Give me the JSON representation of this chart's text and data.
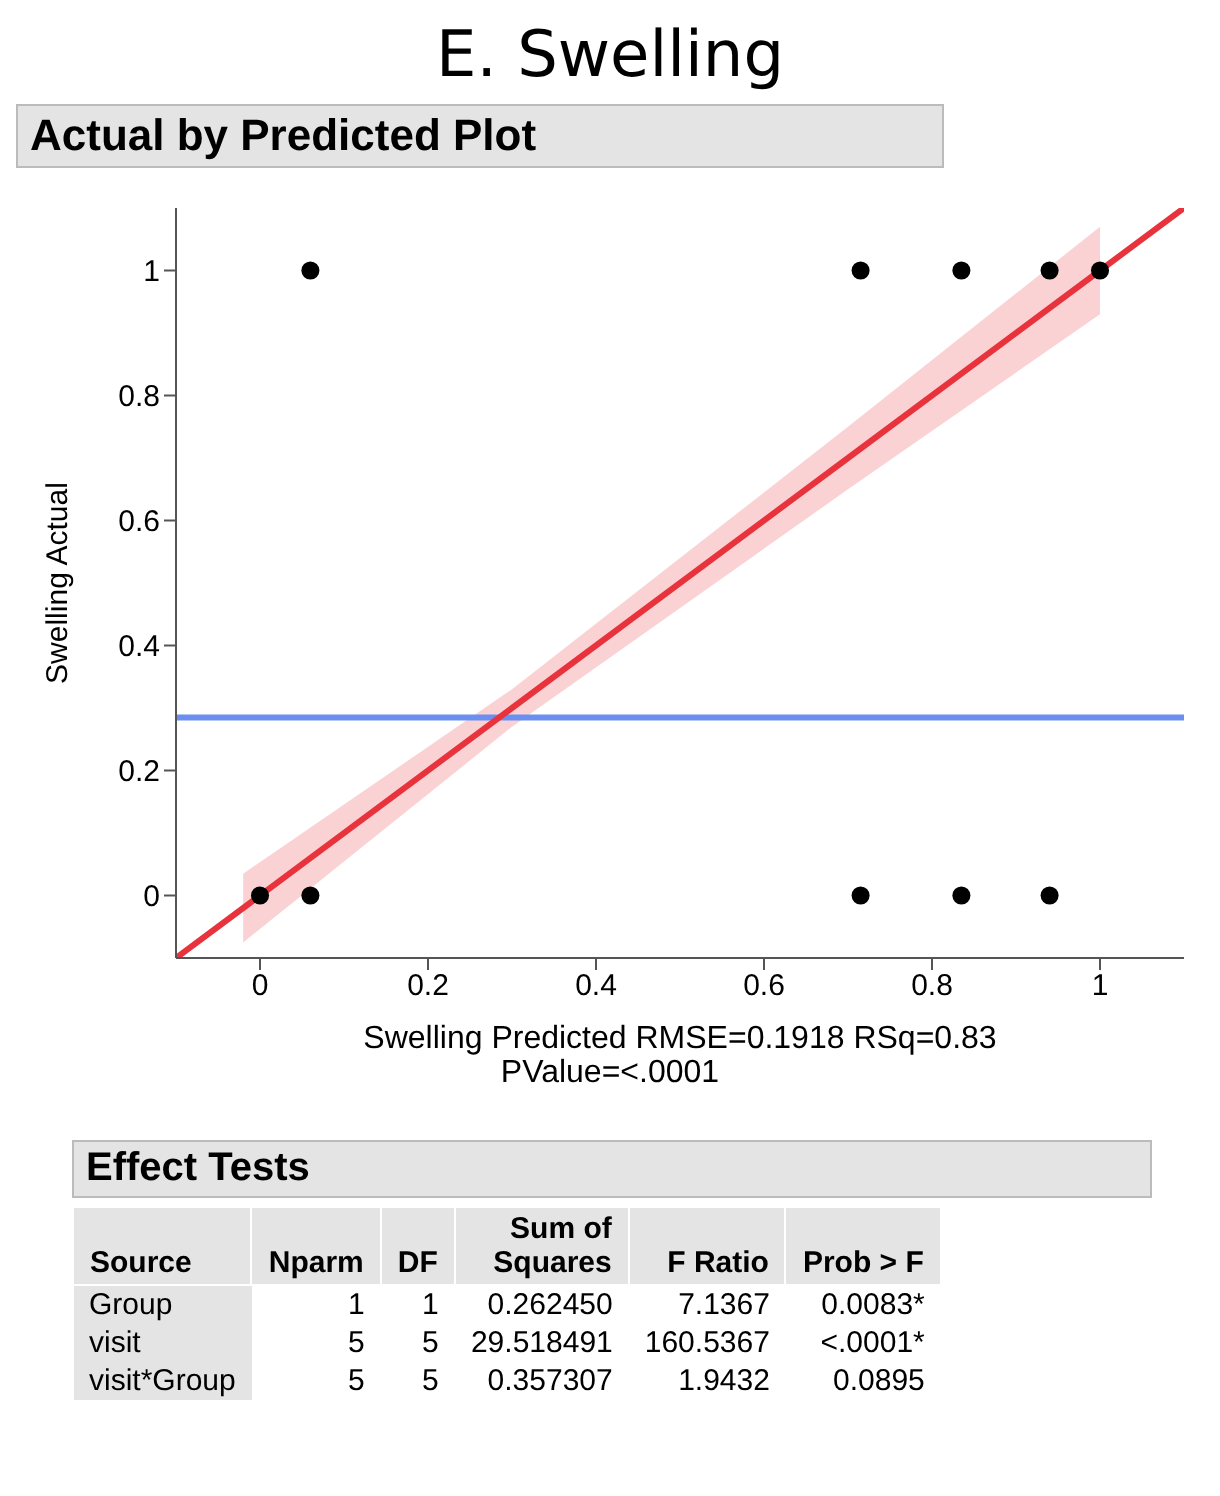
{
  "chart_data": {
    "type": "scatter",
    "title": "E. Swelling",
    "subtitle": "Actual by Predicted Plot",
    "xlabel": "Swelling Predicted RMSE=0.1918 RSq=0.83",
    "ylabel": "Swelling Actual",
    "xlim": [
      -0.1,
      1.1
    ],
    "xticks": [
      0,
      0.2,
      0.4,
      0.6,
      0.8,
      1
    ],
    "ylim": [
      -0.1,
      1.1
    ],
    "yticks": [
      0,
      0.2,
      0.4,
      0.6,
      0.8,
      1
    ],
    "grid": false,
    "series": [
      {
        "marker": "circle",
        "color": "#000000",
        "x": [
          0,
          0.06,
          0.715,
          0.835,
          0.94,
          0.06,
          0.715,
          0.835,
          0.94,
          1
        ],
        "values": [
          0,
          0,
          0,
          0,
          0,
          1,
          1,
          1,
          1,
          1
        ]
      },
      {
        "type": "line",
        "marker": "none",
        "color": "#e8323c",
        "x": [
          -0.1,
          -0.02,
          0.3,
          0.7,
          1.0,
          1.1
        ],
        "values": [
          -0.1,
          -0.02,
          0.3,
          0.7,
          1.0,
          1.1
        ],
        "lower": [
          null,
          -0.075,
          0.27,
          0.65,
          0.93,
          null
        ],
        "upper": [
          null,
          0.035,
          0.33,
          0.75,
          1.07,
          null
        ]
      }
    ],
    "ref_lines": [
      {
        "axis": "y",
        "value": 0.285,
        "color": "#6a8ff0"
      }
    ],
    "annotations": [
      "PValue=<.0001",
      "Effect Tests",
      "Source",
      "Nparm",
      "DF",
      "Sum of Squares",
      "F Ratio",
      "Prob > F",
      "Group",
      "1",
      "1",
      "0.262450",
      "7.1367",
      "0.0083*",
      "visit",
      "5",
      "5",
      "29.518491",
      "160.5367",
      "<.0001*",
      "visit*Group",
      "5",
      "5",
      "0.357307",
      "1.9432",
      "0.0895"
    ]
  }
}
